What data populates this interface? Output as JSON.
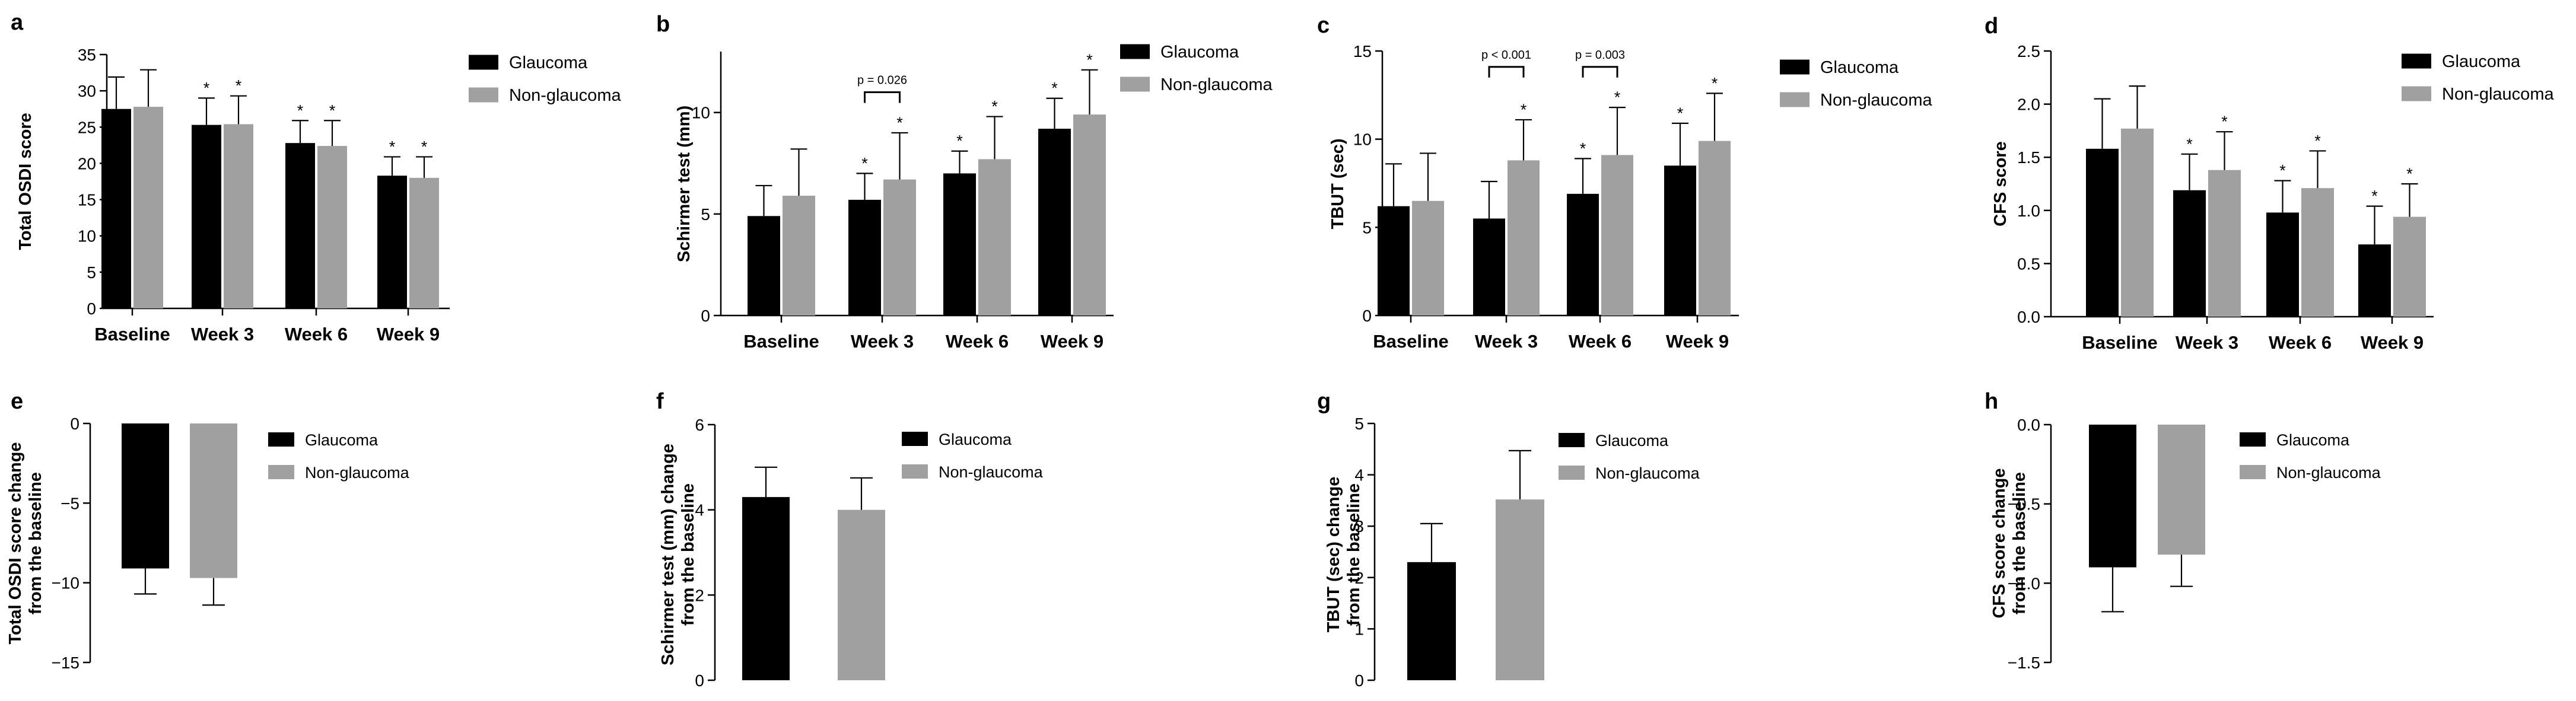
{
  "colors": {
    "glaucoma": "#000000",
    "non_glaucoma": "#a0a0a0",
    "axis": "#000000"
  },
  "legend": {
    "glaucoma": "Glaucoma",
    "non_glaucoma": "Non-glaucoma"
  },
  "significance_marker": "*",
  "chart_data": [
    {
      "panel": "a",
      "type": "bar",
      "ylabel": "Total OSDI score",
      "xlabel": "",
      "categories": [
        "Baseline",
        "Week 3",
        "Week 6",
        "Week 9"
      ],
      "ylim": [
        0,
        35
      ],
      "yticks": [
        0,
        5,
        10,
        15,
        20,
        25,
        30,
        35
      ],
      "yticklabels": [
        "0",
        "5",
        "10",
        "15",
        "20",
        "25",
        "30",
        "35"
      ],
      "series": [
        {
          "name": "Glaucoma",
          "values": [
            27.5,
            25.3,
            22.8,
            18.3
          ],
          "errors": [
            4.4,
            3.7,
            3.1,
            2.6
          ],
          "significant": [
            false,
            true,
            true,
            true
          ]
        },
        {
          "name": "Non-glaucoma",
          "values": [
            27.8,
            25.4,
            22.4,
            18.0
          ],
          "errors": [
            5.1,
            3.9,
            3.5,
            2.9
          ],
          "significant": [
            false,
            true,
            true,
            true
          ]
        }
      ],
      "comparisons": []
    },
    {
      "panel": "b",
      "type": "bar",
      "ylabel": "Schirmer test (mm)",
      "xlabel": "",
      "categories": [
        "Baseline",
        "Week 3",
        "Week 6",
        "Week 9"
      ],
      "ylim": [
        0,
        13
      ],
      "yticks": [
        0,
        5,
        10
      ],
      "yticklabels": [
        "0",
        "5",
        "10"
      ],
      "series": [
        {
          "name": "Glaucoma",
          "values": [
            4.9,
            5.7,
            7.0,
            9.2
          ],
          "errors": [
            1.5,
            1.3,
            1.1,
            1.5
          ],
          "significant": [
            false,
            true,
            true,
            true
          ]
        },
        {
          "name": "Non-glaucoma",
          "values": [
            5.9,
            6.7,
            7.7,
            9.9
          ],
          "errors": [
            2.3,
            2.3,
            2.1,
            2.2
          ],
          "significant": [
            false,
            true,
            true,
            true
          ]
        }
      ],
      "comparisons": [
        {
          "category": "Week 3",
          "label": "p = 0.026",
          "y": 11.0
        }
      ]
    },
    {
      "panel": "c",
      "type": "bar",
      "ylabel": "TBUT (sec)",
      "xlabel": "",
      "categories": [
        "Baseline",
        "Week 3",
        "Week 6",
        "Week 9"
      ],
      "ylim": [
        0,
        15
      ],
      "yticks": [
        0,
        5,
        10,
        15
      ],
      "yticklabels": [
        "0",
        "5",
        "10",
        "15"
      ],
      "series": [
        {
          "name": "Glaucoma",
          "values": [
            6.2,
            5.5,
            6.9,
            8.5
          ],
          "errors": [
            2.4,
            2.1,
            2.0,
            2.4
          ],
          "significant": [
            false,
            false,
            true,
            true
          ]
        },
        {
          "name": "Non-glaucoma",
          "values": [
            6.5,
            8.8,
            9.1,
            9.9
          ],
          "errors": [
            2.7,
            2.3,
            2.7,
            2.7
          ],
          "significant": [
            false,
            true,
            true,
            true
          ]
        }
      ],
      "comparisons": [
        {
          "category": "Week 3",
          "label": "p < 0.001",
          "y": 14.1
        },
        {
          "category": "Week 6",
          "label": "p = 0.003",
          "y": 14.1
        }
      ]
    },
    {
      "panel": "d",
      "type": "bar",
      "ylabel": "CFS score",
      "xlabel": "",
      "categories": [
        "Baseline",
        "Week 3",
        "Week 6",
        "Week 9"
      ],
      "ylim": [
        0,
        2.5
      ],
      "yticks": [
        0,
        0.5,
        1.0,
        1.5,
        2.0,
        2.5
      ],
      "yticklabels": [
        "0.0",
        "0.5",
        "1.0",
        "1.5",
        "2.0",
        "2.5"
      ],
      "series": [
        {
          "name": "Glaucoma",
          "values": [
            1.58,
            1.19,
            0.98,
            0.68
          ],
          "errors": [
            0.47,
            0.34,
            0.3,
            0.36
          ],
          "significant": [
            false,
            true,
            true,
            true
          ]
        },
        {
          "name": "Non-glaucoma",
          "values": [
            1.77,
            1.38,
            1.21,
            0.94
          ],
          "errors": [
            0.4,
            0.36,
            0.35,
            0.31
          ],
          "significant": [
            false,
            true,
            true,
            true
          ]
        }
      ],
      "comparisons": []
    },
    {
      "panel": "e",
      "type": "bar",
      "ylabel": [
        "Total OSDI score change",
        "from the baseline"
      ],
      "xlabel": "",
      "categories": [
        "Glaucoma",
        "Non-glaucoma"
      ],
      "ylim": [
        -15,
        0
      ],
      "yticks": [
        0,
        -5,
        -10,
        -15
      ],
      "yticklabels": [
        "0",
        "−5",
        "−10",
        "−15"
      ],
      "values": [
        -9.1,
        -9.7
      ],
      "errors": [
        1.6,
        1.7
      ]
    },
    {
      "panel": "f",
      "type": "bar",
      "ylabel": [
        "Schirmer test (mm) change",
        "from the baseline"
      ],
      "xlabel": "",
      "categories": [
        "Glaucoma",
        "Non-glaucoma"
      ],
      "ylim": [
        0,
        6
      ],
      "yticks": [
        0,
        2,
        4,
        6
      ],
      "yticklabels": [
        "0",
        "2",
        "4",
        "6"
      ],
      "values": [
        4.3,
        4.0
      ],
      "errors": [
        0.7,
        0.75
      ]
    },
    {
      "panel": "g",
      "type": "bar",
      "ylabel": [
        "TBUT (sec) change",
        "from the baseline"
      ],
      "xlabel": "",
      "categories": [
        "Glaucoma",
        "Non-glaucoma"
      ],
      "ylim": [
        0,
        5
      ],
      "yticks": [
        0,
        1,
        2,
        3,
        4,
        5
      ],
      "yticklabels": [
        "0",
        "1",
        "2",
        "3",
        "4",
        "5"
      ],
      "values": [
        2.3,
        3.52
      ],
      "errors": [
        0.75,
        0.95
      ]
    },
    {
      "panel": "h",
      "type": "bar",
      "ylabel": [
        "CFS score change",
        "from the baseline"
      ],
      "xlabel": "",
      "categories": [
        "Glaucoma",
        "Non-glaucoma"
      ],
      "ylim": [
        -1.5,
        0
      ],
      "yticks": [
        0,
        -0.5,
        -1.0,
        -1.5
      ],
      "yticklabels": [
        "0.0",
        "−0.5",
        "−1.0",
        "−1.5"
      ],
      "values": [
        -0.9,
        -0.82
      ],
      "errors": [
        0.28,
        0.2
      ]
    }
  ]
}
